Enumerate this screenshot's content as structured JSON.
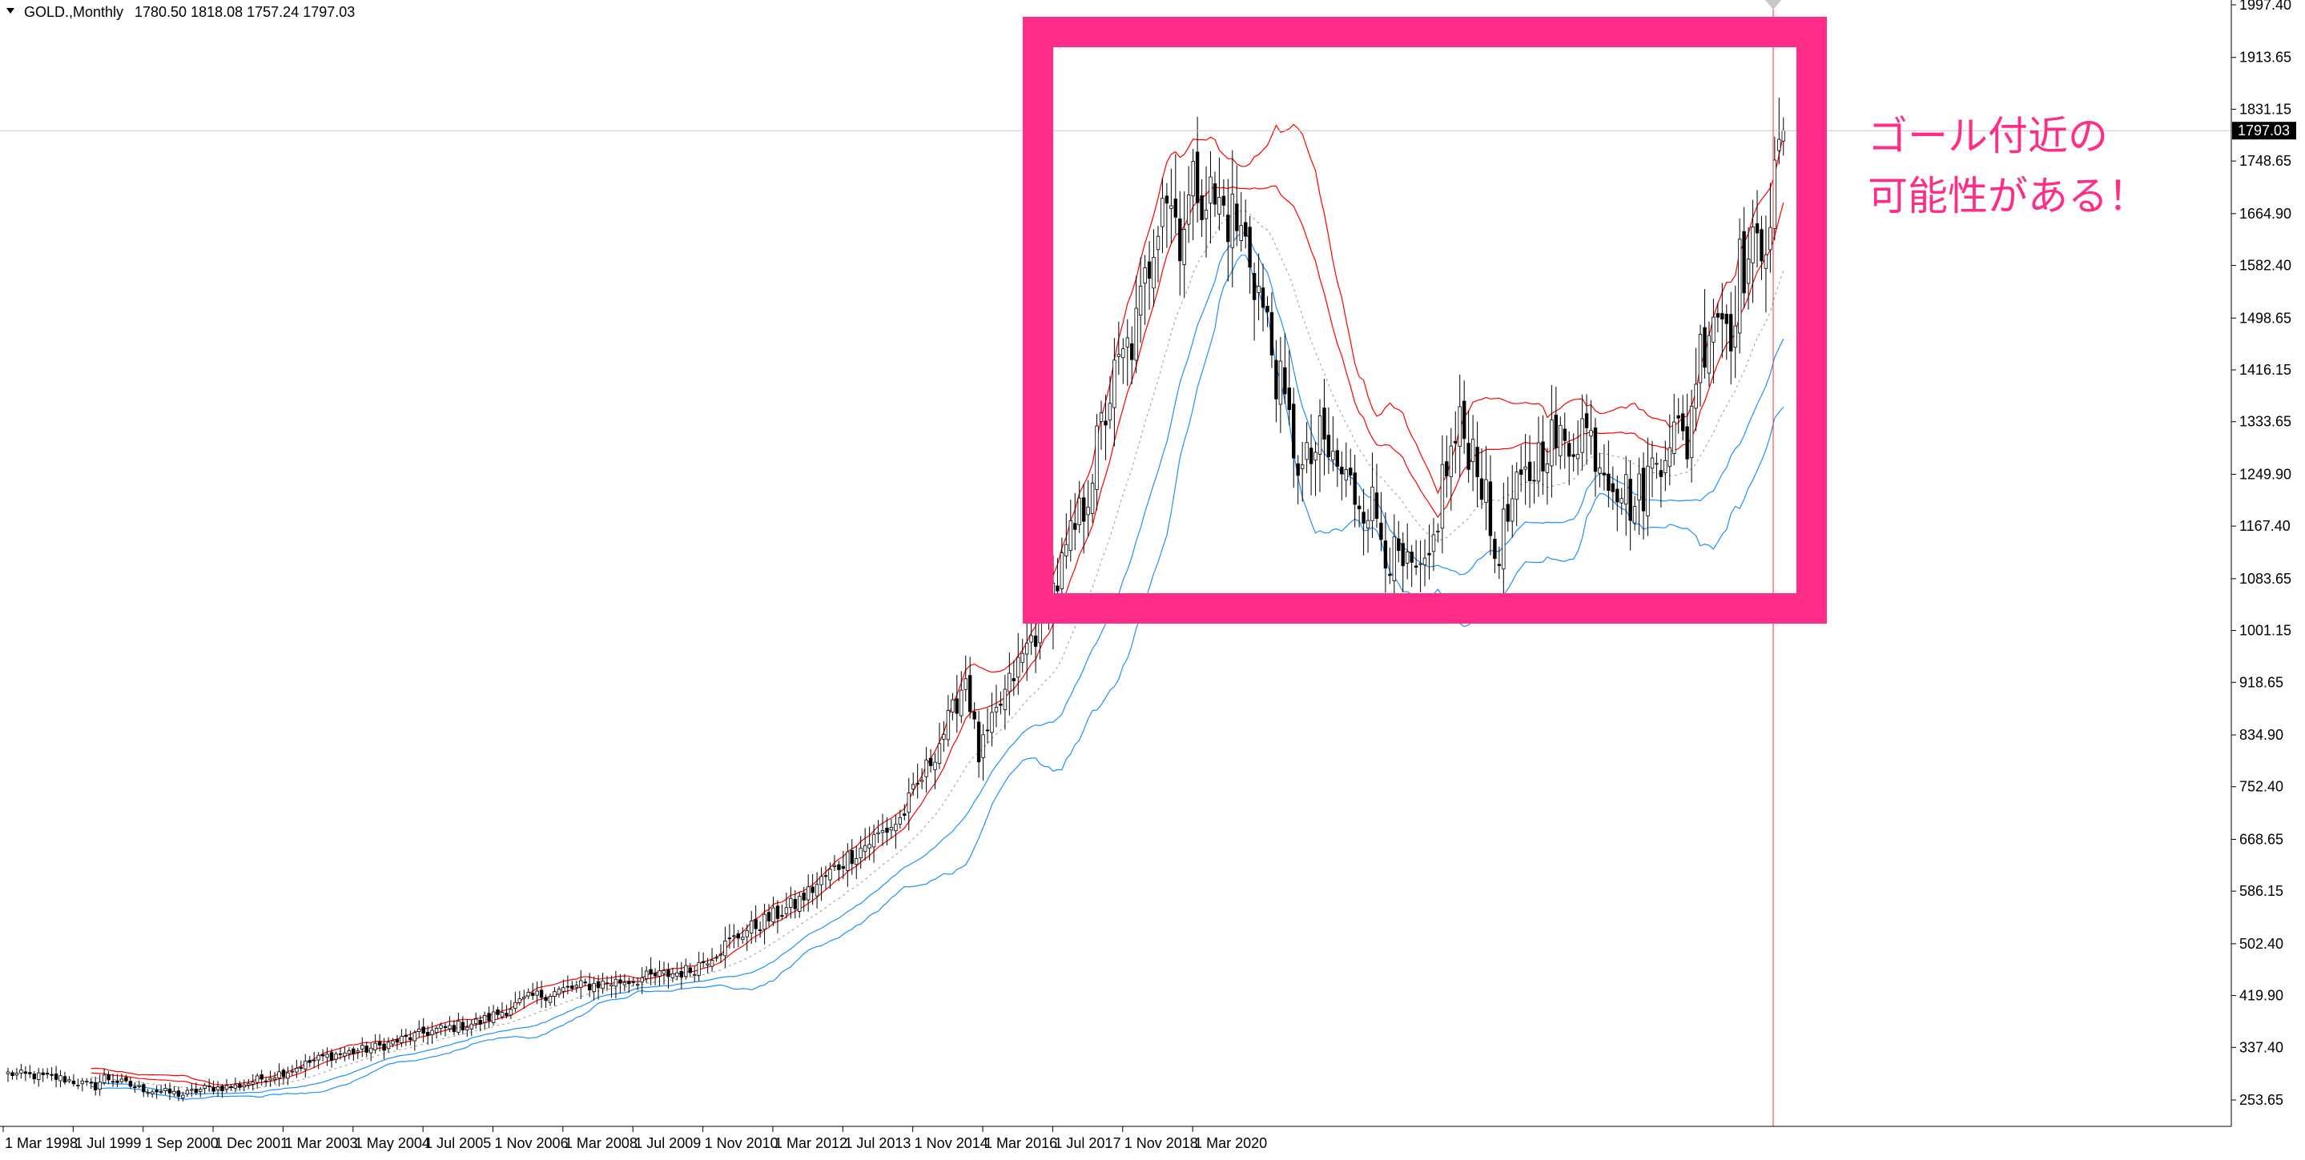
{
  "header": {
    "symbol": "GOLD.,Monthly",
    "ohlc": "1780.50 1818.08 1757.24 1797.03"
  },
  "annotation": {
    "line1": "ゴール付近の",
    "line2": "可能性がある！",
    "color": "#ff2d88"
  },
  "chart_data": {
    "type": "candlestick",
    "title": "GOLD.,Monthly",
    "price_axis_ticks": [
      1997.4,
      1913.65,
      1831.15,
      1748.65,
      1664.9,
      1582.4,
      1498.65,
      1416.15,
      1333.65,
      1249.9,
      1167.4,
      1083.65,
      1001.15,
      918.65,
      834.9,
      752.4,
      668.65,
      586.15,
      502.4,
      419.9,
      337.4,
      253.65
    ],
    "price_axis_labels": [
      "1997.40",
      "1913.65",
      "1831.15",
      "1748.65",
      "1664.90",
      "1582.40",
      "1498.65",
      "1416.15",
      "1333.65",
      "1249.90",
      "1167.40",
      "1083.65",
      "1001.15",
      "918.65",
      "834.90",
      "752.40",
      "668.65",
      "586.15",
      "502.40",
      "419.90",
      "337.40",
      "253.65"
    ],
    "ylim": [
      195,
      2000
    ],
    "time_axis_labels": [
      "1 Mar 1998",
      "1 Jul 1999",
      "1 Sep 2000",
      "1 Dec 2001",
      "1 Mar 2003",
      "1 May 2004",
      "1 Jul 2005",
      "1 Nov 2006",
      "1 Mar 2008",
      "1 Jul 2009",
      "1 Nov 2010",
      "1 Mar 2012",
      "1 Jul 2013",
      "1 Nov 2014",
      "1 Mar 2016",
      "1 Jul 2017",
      "1 Nov 2018",
      "1 Mar 2020"
    ],
    "current_price": 1797.03,
    "current_price_label": "1797.03",
    "last_candle": {
      "open": 1780.5,
      "high": 1818.08,
      "low": 1757.24,
      "close": 1797.03
    },
    "close_anchors": [
      [
        0,
        296
      ],
      [
        12,
        288
      ],
      [
        20,
        275
      ],
      [
        22,
        290
      ],
      [
        30,
        272
      ],
      [
        40,
        262
      ],
      [
        45,
        272
      ],
      [
        52,
        275
      ],
      [
        60,
        292
      ],
      [
        64,
        300
      ],
      [
        72,
        322
      ],
      [
        84,
        337
      ],
      [
        96,
        362
      ],
      [
        108,
        378
      ],
      [
        120,
        418
      ],
      [
        132,
        436
      ],
      [
        144,
        446
      ],
      [
        156,
        460
      ],
      [
        168,
        520
      ],
      [
        180,
        565
      ],
      [
        192,
        640
      ],
      [
        204,
        700
      ],
      [
        210,
        780
      ],
      [
        216,
        870
      ],
      [
        219,
        930
      ],
      [
        222,
        800
      ],
      [
        228,
        900
      ],
      [
        234,
        990
      ],
      [
        240,
        1080
      ],
      [
        246,
        1200
      ],
      [
        252,
        1380
      ],
      [
        258,
        1480
      ],
      [
        260,
        1550
      ],
      [
        264,
        1720
      ],
      [
        268,
        1640
      ],
      [
        272,
        1720
      ],
      [
        276,
        1680
      ],
      [
        280,
        1660
      ],
      [
        284,
        1600
      ],
      [
        288,
        1480
      ],
      [
        292,
        1350
      ],
      [
        296,
        1250
      ],
      [
        300,
        1300
      ],
      [
        304,
        1260
      ],
      [
        308,
        1220
      ],
      [
        312,
        1200
      ],
      [
        316,
        1120
      ],
      [
        320,
        1090
      ],
      [
        324,
        1080
      ],
      [
        326,
        1140
      ],
      [
        328,
        1240
      ],
      [
        332,
        1320
      ],
      [
        336,
        1280
      ],
      [
        340,
        1120
      ],
      [
        344,
        1200
      ],
      [
        348,
        1250
      ],
      [
        352,
        1310
      ],
      [
        356,
        1290
      ],
      [
        360,
        1330
      ],
      [
        364,
        1280
      ],
      [
        368,
        1240
      ],
      [
        372,
        1200
      ],
      [
        376,
        1260
      ],
      [
        380,
        1320
      ],
      [
        384,
        1300
      ],
      [
        386,
        1420
      ],
      [
        390,
        1520
      ],
      [
        394,
        1490
      ],
      [
        396,
        1580
      ],
      [
        400,
        1600
      ],
      [
        404,
        1700
      ],
      [
        406,
        1797
      ]
    ],
    "bollinger_bands": {
      "period": 20,
      "inner_deviation": 1,
      "outer_deviation": 2
    },
    "upper_band_color": "#ff0000",
    "lower_band_color": "#1e90ff",
    "middle_band_color": "#9a9a9a"
  }
}
